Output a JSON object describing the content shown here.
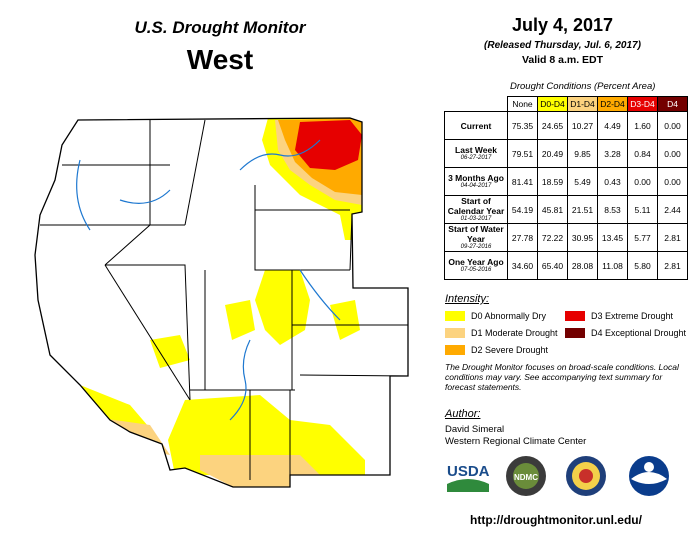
{
  "title": "U.S. Drought Monitor",
  "region": "West",
  "date": "July 4, 2017",
  "released": "(Released Thursday, Jul. 6, 2017)",
  "valid": "Valid 8 a.m. EDT",
  "table": {
    "caption": "Drought Conditions (Percent Area)",
    "headers": [
      "None",
      "D0-D4",
      "D1-D4",
      "D2-D4",
      "D3-D4",
      "D4"
    ],
    "rows": [
      {
        "label": "Current",
        "sub": "",
        "values": [
          "75.35",
          "24.65",
          "10.27",
          "4.49",
          "1.60",
          "0.00"
        ]
      },
      {
        "label": "Last Week",
        "sub": "06-27-2017",
        "values": [
          "79.51",
          "20.49",
          "9.85",
          "3.28",
          "0.84",
          "0.00"
        ]
      },
      {
        "label": "3 Months Ago",
        "sub": "04-04-2017",
        "values": [
          "81.41",
          "18.59",
          "5.49",
          "0.43",
          "0.00",
          "0.00"
        ]
      },
      {
        "label": "Start of Calendar Year",
        "sub": "01-03-2017",
        "values": [
          "54.19",
          "45.81",
          "21.51",
          "8.53",
          "5.11",
          "2.44"
        ]
      },
      {
        "label": "Start of Water Year",
        "sub": "09-27-2016",
        "values": [
          "27.78",
          "72.22",
          "30.95",
          "13.45",
          "5.77",
          "2.81"
        ]
      },
      {
        "label": "One Year Ago",
        "sub": "07-05-2016",
        "values": [
          "34.60",
          "65.40",
          "28.08",
          "11.08",
          "5.80",
          "2.81"
        ]
      }
    ]
  },
  "legend": {
    "heading": "Intensity:",
    "items": [
      {
        "label": "D0 Abnormally Dry",
        "color": "#ffff00"
      },
      {
        "label": "D3 Extreme Drought",
        "color": "#e60000"
      },
      {
        "label": "D1 Moderate Drought",
        "color": "#fcd37f"
      },
      {
        "label": "D4 Exceptional Drought",
        "color": "#730000"
      },
      {
        "label": "D2 Severe Drought",
        "color": "#ffaa00"
      }
    ]
  },
  "note": "The Drought Monitor focuses on broad-scale conditions. Local conditions may vary. See accompanying text summary for forecast statements.",
  "author": {
    "heading": "Author:",
    "name": "David Simeral",
    "org": "Western Regional Climate Center"
  },
  "logos": {
    "usda": "USDA",
    "ndmc": "NDMC"
  },
  "url": "http://droughtmonitor.unl.edu/"
}
